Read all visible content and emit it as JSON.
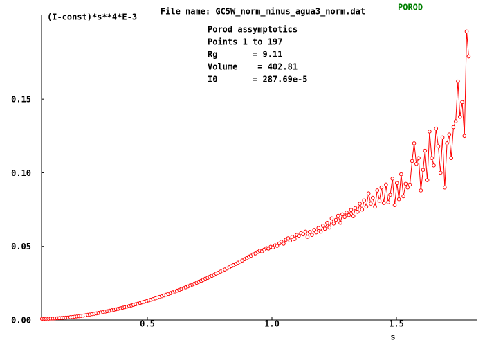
{
  "chart_data": {
    "type": "line",
    "title": "File name: GC5W_norm_minus_agua3_norm.dat",
    "mode_label": "POROD",
    "y_label": "(I-const)*s**4*E-3",
    "x_label": "s",
    "annotations": [
      "Porod assymptotics",
      "Points 1 to 197",
      "Rg       = 9.11",
      "Volume    = 402.81",
      "I0       = 287.69e-5"
    ],
    "xlim": [
      0.075,
      1.825
    ],
    "ylim": [
      0,
      0.207
    ],
    "xticks": [
      0.5,
      {
        "value": 1.0,
        "label": "1.0"
      },
      1.5
    ],
    "yticks": [
      {
        "value": 0,
        "label": "0.00"
      },
      {
        "value": 0.05,
        "label": "0.05"
      },
      {
        "value": 0.1,
        "label": "0.10"
      },
      {
        "value": 0.15,
        "label": "0.15"
      }
    ],
    "series": [
      {
        "color": "#ff0000",
        "x": [
          0.077,
          0.086,
          0.094,
          0.103,
          0.112,
          0.121,
          0.129,
          0.138,
          0.147,
          0.156,
          0.164,
          0.173,
          0.182,
          0.191,
          0.199,
          0.208,
          0.217,
          0.226,
          0.234,
          0.243,
          0.252,
          0.261,
          0.269,
          0.278,
          0.287,
          0.296,
          0.304,
          0.313,
          0.322,
          0.331,
          0.339,
          0.348,
          0.357,
          0.366,
          0.374,
          0.383,
          0.392,
          0.401,
          0.409,
          0.418,
          0.427,
          0.436,
          0.444,
          0.453,
          0.462,
          0.471,
          0.479,
          0.488,
          0.497,
          0.506,
          0.514,
          0.523,
          0.532,
          0.541,
          0.549,
          0.558,
          0.567,
          0.576,
          0.584,
          0.593,
          0.602,
          0.611,
          0.619,
          0.628,
          0.637,
          0.646,
          0.654,
          0.663,
          0.672,
          0.681,
          0.689,
          0.698,
          0.707,
          0.716,
          0.724,
          0.733,
          0.742,
          0.751,
          0.759,
          0.768,
          0.776,
          0.785,
          0.794,
          0.803,
          0.811,
          0.82,
          0.829,
          0.838,
          0.846,
          0.855,
          0.864,
          0.873,
          0.881,
          0.89,
          0.899,
          0.908,
          0.916,
          0.925,
          0.934,
          0.943,
          0.951,
          0.96,
          0.969,
          0.978,
          0.986,
          0.995,
          1.004,
          1.013,
          1.021,
          1.03,
          1.038,
          1.047,
          1.056,
          1.065,
          1.073,
          1.082,
          1.091,
          1.1,
          1.108,
          1.117,
          1.126,
          1.135,
          1.143,
          1.152,
          1.161,
          1.17,
          1.178,
          1.187,
          1.196,
          1.205,
          1.213,
          1.222,
          1.231,
          1.24,
          1.248,
          1.257,
          1.266,
          1.275,
          1.283,
          1.292,
          1.3,
          1.309,
          1.318,
          1.327,
          1.335,
          1.344,
          1.353,
          1.362,
          1.37,
          1.379,
          1.388,
          1.397,
          1.405,
          1.414,
          1.423,
          1.432,
          1.44,
          1.449,
          1.458,
          1.467,
          1.475,
          1.484,
          1.493,
          1.502,
          1.51,
          1.519,
          1.528,
          1.537,
          1.545,
          1.554,
          1.563,
          1.571,
          1.58,
          1.589,
          1.598,
          1.607,
          1.615,
          1.624,
          1.633,
          1.642,
          1.65,
          1.659,
          1.668,
          1.677,
          1.685,
          1.694,
          1.703,
          1.712,
          1.72,
          1.729,
          1.738,
          1.747,
          1.755,
          1.764,
          1.773,
          1.782,
          1.79
        ],
        "values": [
          0.0008,
          0.0008,
          0.0009,
          0.0009,
          0.001,
          0.001,
          0.0011,
          0.0012,
          0.0013,
          0.0014,
          0.0015,
          0.0016,
          0.0017,
          0.0019,
          0.002,
          0.0022,
          0.0024,
          0.0026,
          0.0028,
          0.003,
          0.0032,
          0.0035,
          0.0037,
          0.004,
          0.0042,
          0.0045,
          0.0048,
          0.0051,
          0.0054,
          0.0057,
          0.006,
          0.0063,
          0.0066,
          0.007,
          0.0073,
          0.0076,
          0.008,
          0.0084,
          0.0087,
          0.0091,
          0.0095,
          0.0099,
          0.0103,
          0.0107,
          0.0111,
          0.0115,
          0.012,
          0.0124,
          0.0128,
          0.0133,
          0.0138,
          0.0142,
          0.0147,
          0.0152,
          0.0157,
          0.0162,
          0.0167,
          0.0172,
          0.0177,
          0.0183,
          0.0188,
          0.0194,
          0.0199,
          0.0205,
          0.0211,
          0.0216,
          0.0222,
          0.0228,
          0.0235,
          0.0241,
          0.0247,
          0.0253,
          0.026,
          0.0266,
          0.0273,
          0.0281,
          0.0286,
          0.0294,
          0.03,
          0.0307,
          0.0315,
          0.0321,
          0.0329,
          0.0336,
          0.0343,
          0.035,
          0.0358,
          0.0366,
          0.0373,
          0.0381,
          0.0389,
          0.0397,
          0.0404,
          0.0413,
          0.042,
          0.043,
          0.0436,
          0.0446,
          0.0452,
          0.0462,
          0.047,
          0.0466,
          0.0478,
          0.0488,
          0.0485,
          0.0497,
          0.0493,
          0.0507,
          0.0503,
          0.052,
          0.0532,
          0.0518,
          0.0545,
          0.0555,
          0.054,
          0.0565,
          0.055,
          0.0578,
          0.0572,
          0.059,
          0.0582,
          0.06,
          0.0565,
          0.0598,
          0.0578,
          0.0612,
          0.0595,
          0.0625,
          0.06,
          0.064,
          0.062,
          0.066,
          0.0628,
          0.069,
          0.0655,
          0.068,
          0.0708,
          0.066,
          0.0718,
          0.07,
          0.073,
          0.0712,
          0.0748,
          0.0705,
          0.076,
          0.0735,
          0.079,
          0.075,
          0.0812,
          0.077,
          0.086,
          0.079,
          0.083,
          0.077,
          0.088,
          0.081,
          0.09,
          0.0795,
          0.092,
          0.08,
          0.085,
          0.096,
          0.078,
          0.093,
          0.082,
          0.099,
          0.084,
          0.0925,
          0.09,
          0.092,
          0.108,
          0.12,
          0.106,
          0.11,
          0.088,
          0.102,
          0.115,
          0.095,
          0.128,
          0.11,
          0.105,
          0.13,
          0.118,
          0.1,
          0.124,
          0.09,
          0.12,
          0.126,
          0.11,
          0.131,
          0.135,
          0.162,
          0.138,
          0.148,
          0.125,
          0.196,
          0.179
        ]
      }
    ]
  }
}
